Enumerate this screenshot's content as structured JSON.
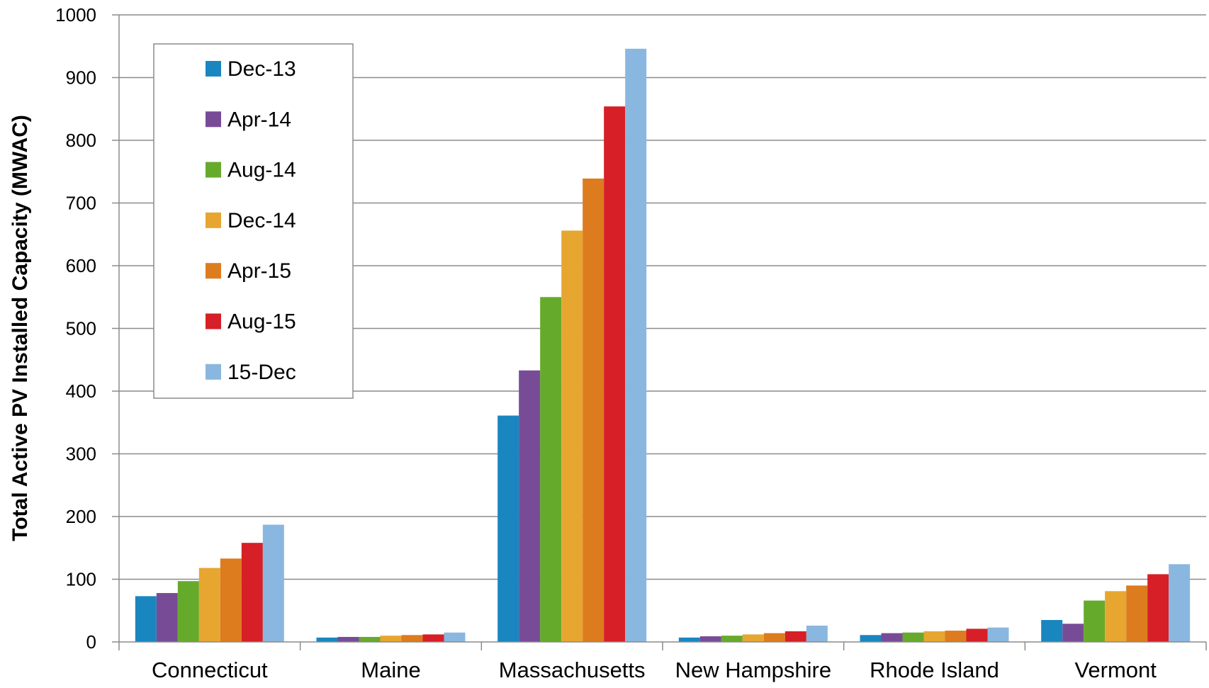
{
  "chart_data": {
    "type": "bar",
    "title": "",
    "xlabel": "",
    "ylabel": "Total Active PV Installed Capacity (MWAC)",
    "ylim": [
      0,
      1000
    ],
    "yticks": [
      0,
      100,
      200,
      300,
      400,
      500,
      600,
      700,
      800,
      900,
      1000
    ],
    "grid": true,
    "legend_position": "top-left",
    "categories": [
      "Connecticut",
      "Maine",
      "Massachusetts",
      "New Hampshire",
      "Rhode Island",
      "Vermont"
    ],
    "series": [
      {
        "name": "Dec-13",
        "color": "#1a86c0",
        "values": [
          73,
          7,
          361,
          7,
          11,
          35
        ]
      },
      {
        "name": "Apr-14",
        "color": "#784b97",
        "values": [
          78,
          8,
          433,
          9,
          14,
          29
        ]
      },
      {
        "name": "Aug-14",
        "color": "#66aa2b",
        "values": [
          97,
          8,
          550,
          10,
          15,
          66
        ]
      },
      {
        "name": "Dec-14",
        "color": "#e6a630",
        "values": [
          118,
          10,
          656,
          12,
          17,
          81
        ]
      },
      {
        "name": "Apr-15",
        "color": "#dd7b1f",
        "values": [
          133,
          11,
          739,
          14,
          18,
          90
        ]
      },
      {
        "name": "Aug-15",
        "color": "#d61f26",
        "values": [
          158,
          12,
          854,
          17,
          21,
          108
        ]
      },
      {
        "name": "15-Dec",
        "color": "#8ab7df",
        "values": [
          187,
          15,
          946,
          26,
          23,
          124
        ]
      }
    ]
  }
}
